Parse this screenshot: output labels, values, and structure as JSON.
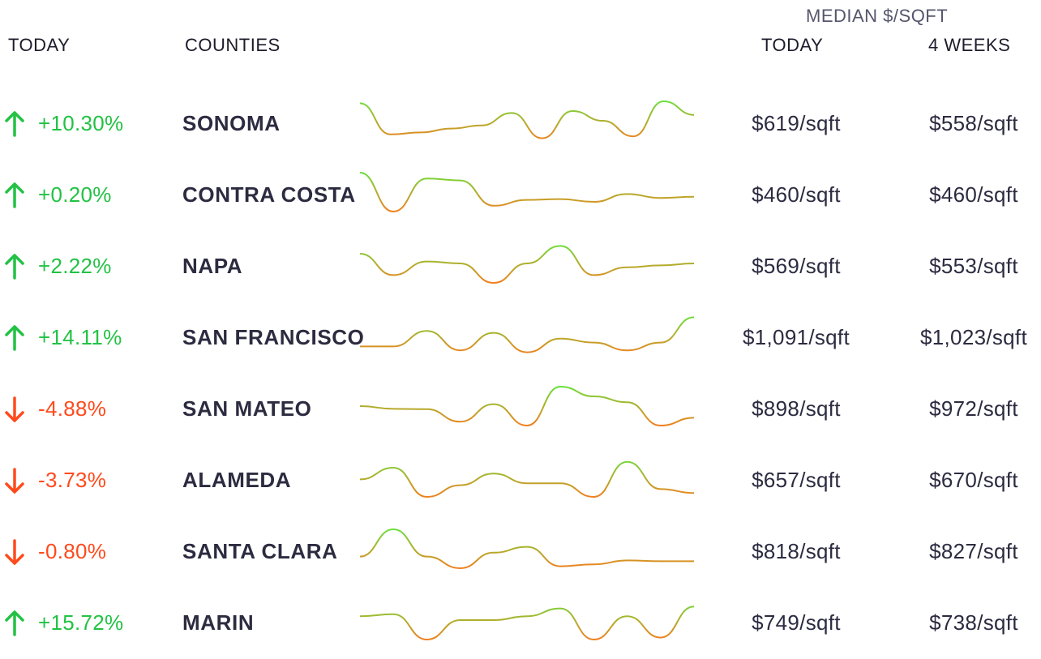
{
  "header": {
    "today_label": "TODAY",
    "counties_label": "COUNTIES",
    "median_group_label": "MEDIAN $/SQFT",
    "median_today_label": "TODAY",
    "median_4weeks_label": "4 WEEKS"
  },
  "colors": {
    "up": "#22c244",
    "down": "#ff4a1c",
    "spark_high": "#6cdf3c",
    "spark_low": "#f0801e"
  },
  "rows": [
    {
      "direction": "up",
      "direction_icon": "arrow-up-icon",
      "change": "+10.30%",
      "county": "SONOMA",
      "price_today": "$619/sqft",
      "price_4weeks": "$558/sqft",
      "trend": [
        0.95,
        0.15,
        0.2,
        0.3,
        0.38,
        0.7,
        0.05,
        0.75,
        0.5,
        0.1,
        1.0,
        0.65
      ]
    },
    {
      "direction": "up",
      "direction_icon": "arrow-up-icon",
      "change": "+0.20%",
      "county": "CONTRA COSTA",
      "price_today": "$460/sqft",
      "price_4weeks": "$460/sqft",
      "trend": [
        1.0,
        0.0,
        0.85,
        0.8,
        0.15,
        0.3,
        0.32,
        0.25,
        0.45,
        0.35,
        0.38
      ]
    },
    {
      "direction": "up",
      "direction_icon": "arrow-up-icon",
      "change": "+2.22%",
      "county": "NAPA",
      "price_today": "$569/sqft",
      "price_4weeks": "$553/sqft",
      "trend": [
        0.75,
        0.2,
        0.55,
        0.5,
        0.0,
        0.5,
        0.95,
        0.2,
        0.4,
        0.45,
        0.5
      ]
    },
    {
      "direction": "up",
      "direction_icon": "arrow-up-icon",
      "change": "+14.11%",
      "county": "SAN FRANCISCO",
      "price_today": "$1,091/sqft",
      "price_4weeks": "$1,023/sqft",
      "trend": [
        0.2,
        0.2,
        0.6,
        0.1,
        0.55,
        0.05,
        0.4,
        0.3,
        0.1,
        0.3,
        0.95
      ]
    },
    {
      "direction": "down",
      "direction_icon": "arrow-down-icon",
      "change": "-4.88%",
      "county": "SAN MATEO",
      "price_today": "$898/sqft",
      "price_4weeks": "$972/sqft",
      "trend": [
        0.5,
        0.43,
        0.42,
        0.1,
        0.55,
        0.0,
        1.0,
        0.75,
        0.6,
        0.0,
        0.2
      ]
    },
    {
      "direction": "down",
      "direction_icon": "arrow-down-icon",
      "change": "-3.73%",
      "county": "ALAMEDA",
      "price_today": "$657/sqft",
      "price_4weeks": "$670/sqft",
      "trend": [
        0.45,
        0.75,
        0.0,
        0.3,
        0.6,
        0.35,
        0.35,
        0.0,
        0.9,
        0.2,
        0.1
      ]
    },
    {
      "direction": "down",
      "direction_icon": "arrow-down-icon",
      "change": "-0.80%",
      "county": "SANTA CLARA",
      "price_today": "$818/sqft",
      "price_4weeks": "$827/sqft",
      "trend": [
        0.3,
        1.0,
        0.3,
        0.0,
        0.4,
        0.55,
        0.05,
        0.1,
        0.2,
        0.18,
        0.18
      ]
    },
    {
      "direction": "up",
      "direction_icon": "arrow-up-icon",
      "change": "+15.72%",
      "county": "MARIN",
      "price_today": "$749/sqft",
      "price_4weeks": "$738/sqft",
      "trend": [
        0.6,
        0.65,
        0.0,
        0.5,
        0.5,
        0.6,
        0.8,
        0.0,
        0.6,
        0.05,
        0.85
      ]
    }
  ]
}
